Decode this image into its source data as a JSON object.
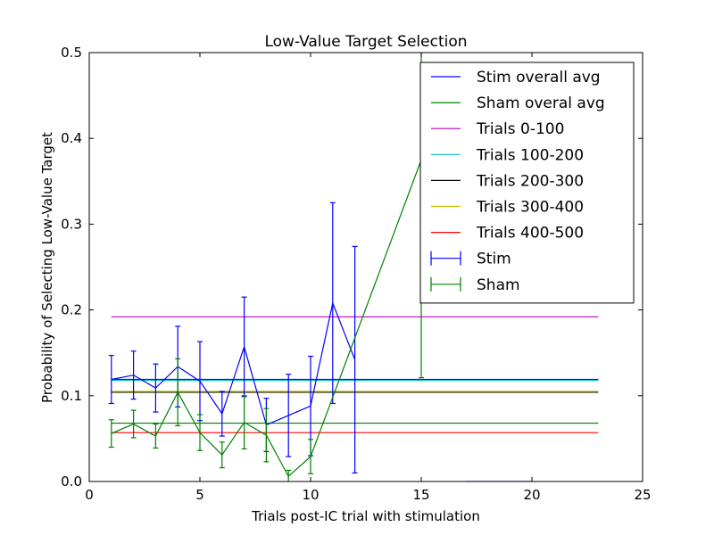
{
  "chart_data": {
    "type": "line",
    "title": "Low-Value Target Selection",
    "xlabel": "Trials post-IC trial with stimulation",
    "ylabel": "Probability of Selecting Low-Value Target",
    "xlim": [
      0,
      25
    ],
    "ylim": [
      0,
      0.5
    ],
    "xticks": [
      "0",
      "5",
      "10",
      "15",
      "20",
      "25"
    ],
    "yticks": [
      "0.0",
      "0.1",
      "0.2",
      "0.3",
      "0.4",
      "0.5"
    ],
    "grid": false,
    "legend_position": "top-right",
    "hlines": [
      {
        "name": "Stim overall avg",
        "y": 0.119,
        "xmin": 1,
        "xmax": 23,
        "color": "#0000ff"
      },
      {
        "name": "Sham overal avg",
        "y": 0.068,
        "xmin": 1,
        "xmax": 23,
        "color": "#008000"
      },
      {
        "name": "Trials 0-100",
        "y": 0.192,
        "xmin": 1,
        "xmax": 23,
        "color": "#bf00bf"
      },
      {
        "name": "Trials 100-200",
        "y": 0.118,
        "xmin": 1,
        "xmax": 23,
        "color": "#00bfbf"
      },
      {
        "name": "Trials 200-300",
        "y": 0.104,
        "xmin": 1,
        "xmax": 23,
        "color": "#000000"
      },
      {
        "name": "Trials 300-400",
        "y": 0.105,
        "xmin": 1,
        "xmax": 23,
        "color": "#bfbf00"
      },
      {
        "name": "Trials 400-500",
        "y": 0.057,
        "xmin": 1,
        "xmax": 23,
        "color": "#ff0000"
      }
    ],
    "series": [
      {
        "name": "Stim",
        "color": "#0000ff",
        "x": [
          1,
          2,
          3,
          4,
          5,
          6,
          7,
          8,
          9,
          10,
          11,
          12,
          13,
          14,
          15,
          16,
          17,
          18,
          19,
          20
        ],
        "y": [
          0.119,
          0.124,
          0.109,
          0.134,
          0.117,
          0.079,
          0.157,
          0.066,
          0.077,
          0.088,
          0.208,
          0.142,
          null,
          null,
          null,
          null,
          0,
          0,
          0,
          0
        ],
        "err": [
          0.028,
          0.028,
          0.028,
          0.047,
          0.046,
          0.026,
          0.058,
          0.031,
          0.048,
          0.058,
          0.117,
          0.132,
          null,
          null,
          null,
          null,
          0,
          0,
          0,
          0
        ]
      },
      {
        "name": "Sham",
        "color": "#008000",
        "x": [
          1,
          2,
          3,
          4,
          5,
          6,
          7,
          8,
          9,
          10,
          15
        ],
        "y": [
          0.056,
          0.067,
          0.053,
          0.104,
          0.057,
          0.031,
          0.069,
          0.054,
          0.006,
          0.029,
          0.375
        ],
        "err": [
          0.016,
          0.016,
          0.014,
          0.039,
          0.021,
          0.015,
          0.031,
          0.031,
          0.007,
          0.02,
          0.254
        ]
      }
    ]
  }
}
